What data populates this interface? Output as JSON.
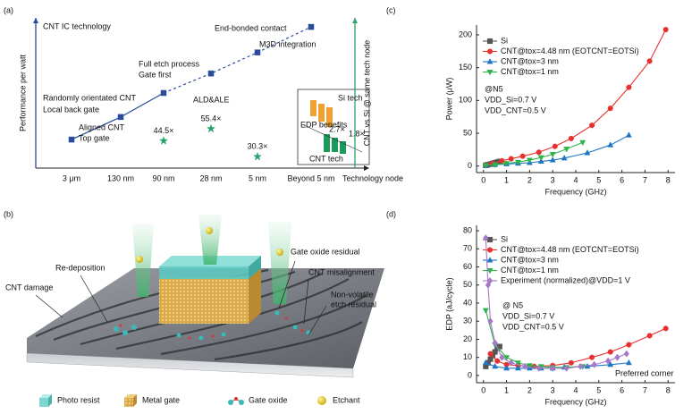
{
  "panel_labels": [
    "(a)",
    "(b)",
    "(c)",
    "(d)"
  ],
  "chart_data": [
    {
      "type": "line",
      "xlabel": "Technology node",
      "ylabel": "Performance per watt",
      "y2label": "CNT vs Si @ same tech node",
      "categories": [
        "3 μm",
        "130 nm",
        "90 nm",
        "28 nm",
        "5 nm",
        "Beyond 5 nm"
      ],
      "ylim": [
        0,
        100
      ],
      "y2lim": [
        20,
        155
      ],
      "series": [
        {
          "color": "#2b4c9b",
          "marker": "square",
          "dashed_from": 2,
          "values": [
            19,
            34,
            50,
            63,
            77,
            94
          ]
        },
        {
          "color": "#2aa36b",
          "marker": "star",
          "axis": "y2",
          "values": [
            null,
            null,
            44.5,
            55.4,
            30.3,
            null
          ],
          "value_labels": [
            null,
            null,
            "44.5×",
            "55.4×",
            "30.3×",
            null
          ]
        }
      ],
      "annotations": [
        "CNT IC technology",
        "Randomly orientated CNT",
        "Local back gate",
        "Aligned CNT",
        "Top gate",
        "Full etch process",
        "Gate first",
        "ALD&ALE",
        "End-bonded contact",
        "M3D integration"
      ],
      "inset": [
        "Si tech",
        "EDP benefits",
        "CNT tech",
        "2.7×",
        "1.8×"
      ]
    },
    {
      "type": "line",
      "xlabel": "Frequency (GHz)",
      "ylabel": "Power (μW)",
      "xlim": [
        -0.3,
        8.3
      ],
      "ylim": [
        -10,
        215
      ],
      "xticks": [
        0,
        1,
        2,
        3,
        4,
        5,
        6,
        7,
        8
      ],
      "yticks": [
        0,
        50,
        100,
        150,
        200
      ],
      "legend": "upper left",
      "series": [
        {
          "name": "Si",
          "color": "#555555",
          "marker": "square",
          "x": [
            0.1,
            0.2,
            0.3,
            0.4,
            0.5,
            0.6,
            0.7
          ],
          "values": [
            1,
            2,
            3,
            4,
            5,
            6,
            7
          ]
        },
        {
          "name": "CNT@tox=4.48 nm (EOTCNT=EOTSi)",
          "color": "#e8302f",
          "marker": "circle",
          "x": [
            0.1,
            0.4,
            0.8,
            1.2,
            1.7,
            2.4,
            3.1,
            3.8,
            4.7,
            5.5,
            6.3,
            7.2,
            7.9
          ],
          "values": [
            2,
            4,
            8,
            11,
            15,
            21,
            30,
            42,
            62,
            88,
            120,
            160,
            208
          ]
        },
        {
          "name": "CNT@tox=3 nm",
          "color": "#1f77c4",
          "marker": "triangle",
          "x": [
            0.1,
            0.5,
            1,
            1.5,
            2,
            2.5,
            3,
            3.5,
            4.5,
            5.5,
            6.3
          ],
          "values": [
            1,
            2,
            3,
            4,
            5,
            7,
            9,
            12,
            20,
            32,
            47
          ]
        },
        {
          "name": "CNT@tox=1 nm",
          "color": "#2db34a",
          "marker": "triangle-down",
          "x": [
            0.1,
            0.5,
            1,
            1.5,
            2,
            2.5,
            3,
            3.6,
            4.3
          ],
          "values": [
            1,
            2,
            4,
            6,
            9,
            13,
            18,
            26,
            36
          ]
        }
      ],
      "annotations": [
        "@N5",
        "VDD_Si=0.7 V",
        "VDD_CNT=0.5 V"
      ]
    },
    {
      "type": "line",
      "xlabel": "Frequency (GHz)",
      "ylabel": "EDP (aJ/cycle)",
      "xlim": [
        -0.3,
        8.3
      ],
      "ylim": [
        -4,
        83
      ],
      "xticks": [
        0,
        1,
        2,
        3,
        4,
        5,
        6,
        7,
        8
      ],
      "yticks": [
        0,
        10,
        20,
        30,
        40,
        50,
        60,
        70,
        80
      ],
      "legend": "upper left",
      "series": [
        {
          "name": "Si",
          "color": "#555555",
          "marker": "square",
          "x": [
            0.1,
            0.2,
            0.3,
            0.4,
            0.5,
            0.6,
            0.7
          ],
          "values": [
            5,
            7,
            9,
            11,
            13,
            15,
            16
          ]
        },
        {
          "name": "CNT@tox=4.48 nm (EOTCNT=EOTSi)",
          "color": "#e8302f",
          "marker": "circle",
          "x": [
            0.3,
            0.6,
            1.0,
            1.5,
            2.2,
            3.0,
            3.8,
            4.7,
            5.5,
            6.3,
            7.2,
            7.9
          ],
          "values": [
            12,
            8,
            6,
            5.5,
            5,
            5.5,
            7,
            10,
            13,
            17,
            22,
            26
          ]
        },
        {
          "name": "CNT@tox=3 nm",
          "color": "#1f77c4",
          "marker": "triangle",
          "x": [
            0.1,
            0.5,
            1,
            1.5,
            2,
            2.5,
            3,
            3.5,
            4.5,
            5.5,
            6.3
          ],
          "values": [
            7,
            5,
            4,
            4,
            4,
            4,
            4,
            4.5,
            5,
            6,
            7
          ]
        },
        {
          "name": "CNT@tox=1 nm",
          "color": "#2db34a",
          "marker": "triangle-down",
          "x": [
            0.1,
            0.5,
            1,
            1.5,
            2,
            2.5,
            3,
            3.6,
            4.3
          ],
          "values": [
            36,
            17,
            10,
            7,
            5.5,
            5,
            4.5,
            4.5,
            5
          ]
        },
        {
          "name": "Experiment (normalized)@VDD=1 V",
          "color": "#a777c9",
          "marker": "diamond",
          "x": [
            0.1,
            0.2,
            0.3,
            0.5,
            0.8,
            1.2,
            1.8,
            2.4,
            3,
            3.6,
            4.2,
            4.8,
            5.4,
            5.8,
            6.2
          ],
          "values": [
            76,
            50,
            30,
            18,
            10,
            7,
            5,
            4,
            4,
            4,
            5,
            6,
            8,
            10,
            12
          ]
        }
      ],
      "annotations": [
        "@ N5",
        "VDD_Si=0.7 V",
        "VDD_CNT=0.5 V",
        "Preferred corner"
      ]
    }
  ],
  "illustration": {
    "callouts": [
      "Re-deposition",
      "CNT damage",
      "Gate oxide residual",
      "CNT misalignment",
      "Non-volatile",
      "etch residual"
    ],
    "legend": [
      "Photo resist",
      "Metal gate",
      "Gate oxide",
      "Etchant"
    ]
  }
}
